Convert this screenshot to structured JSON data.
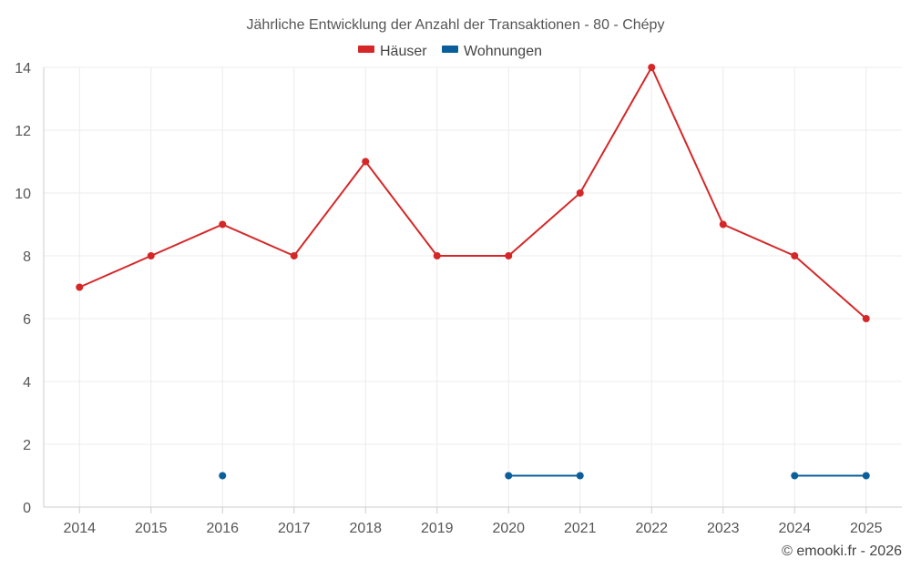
{
  "chart_data": {
    "type": "line",
    "title": "Jährliche Entwicklung der Anzahl der Transaktionen - 80 - Chépy",
    "x": [
      "2014",
      "2015",
      "2016",
      "2017",
      "2018",
      "2019",
      "2020",
      "2021",
      "2022",
      "2023",
      "2024",
      "2025"
    ],
    "ylim": [
      0,
      14
    ],
    "yticks": [
      0,
      2,
      4,
      6,
      8,
      10,
      12,
      14
    ],
    "grid": true,
    "legend_position": "top-center",
    "series": [
      {
        "name": "Häuser",
        "color": "#d62728",
        "values": [
          7,
          8,
          9,
          8,
          11,
          8,
          8,
          10,
          14,
          9,
          8,
          6
        ]
      },
      {
        "name": "Wohnungen",
        "color": "#0a5f9a",
        "values": [
          null,
          null,
          1,
          null,
          null,
          null,
          1,
          1,
          null,
          null,
          1,
          1
        ]
      }
    ]
  },
  "credit": "© emooki.fr - 2026"
}
